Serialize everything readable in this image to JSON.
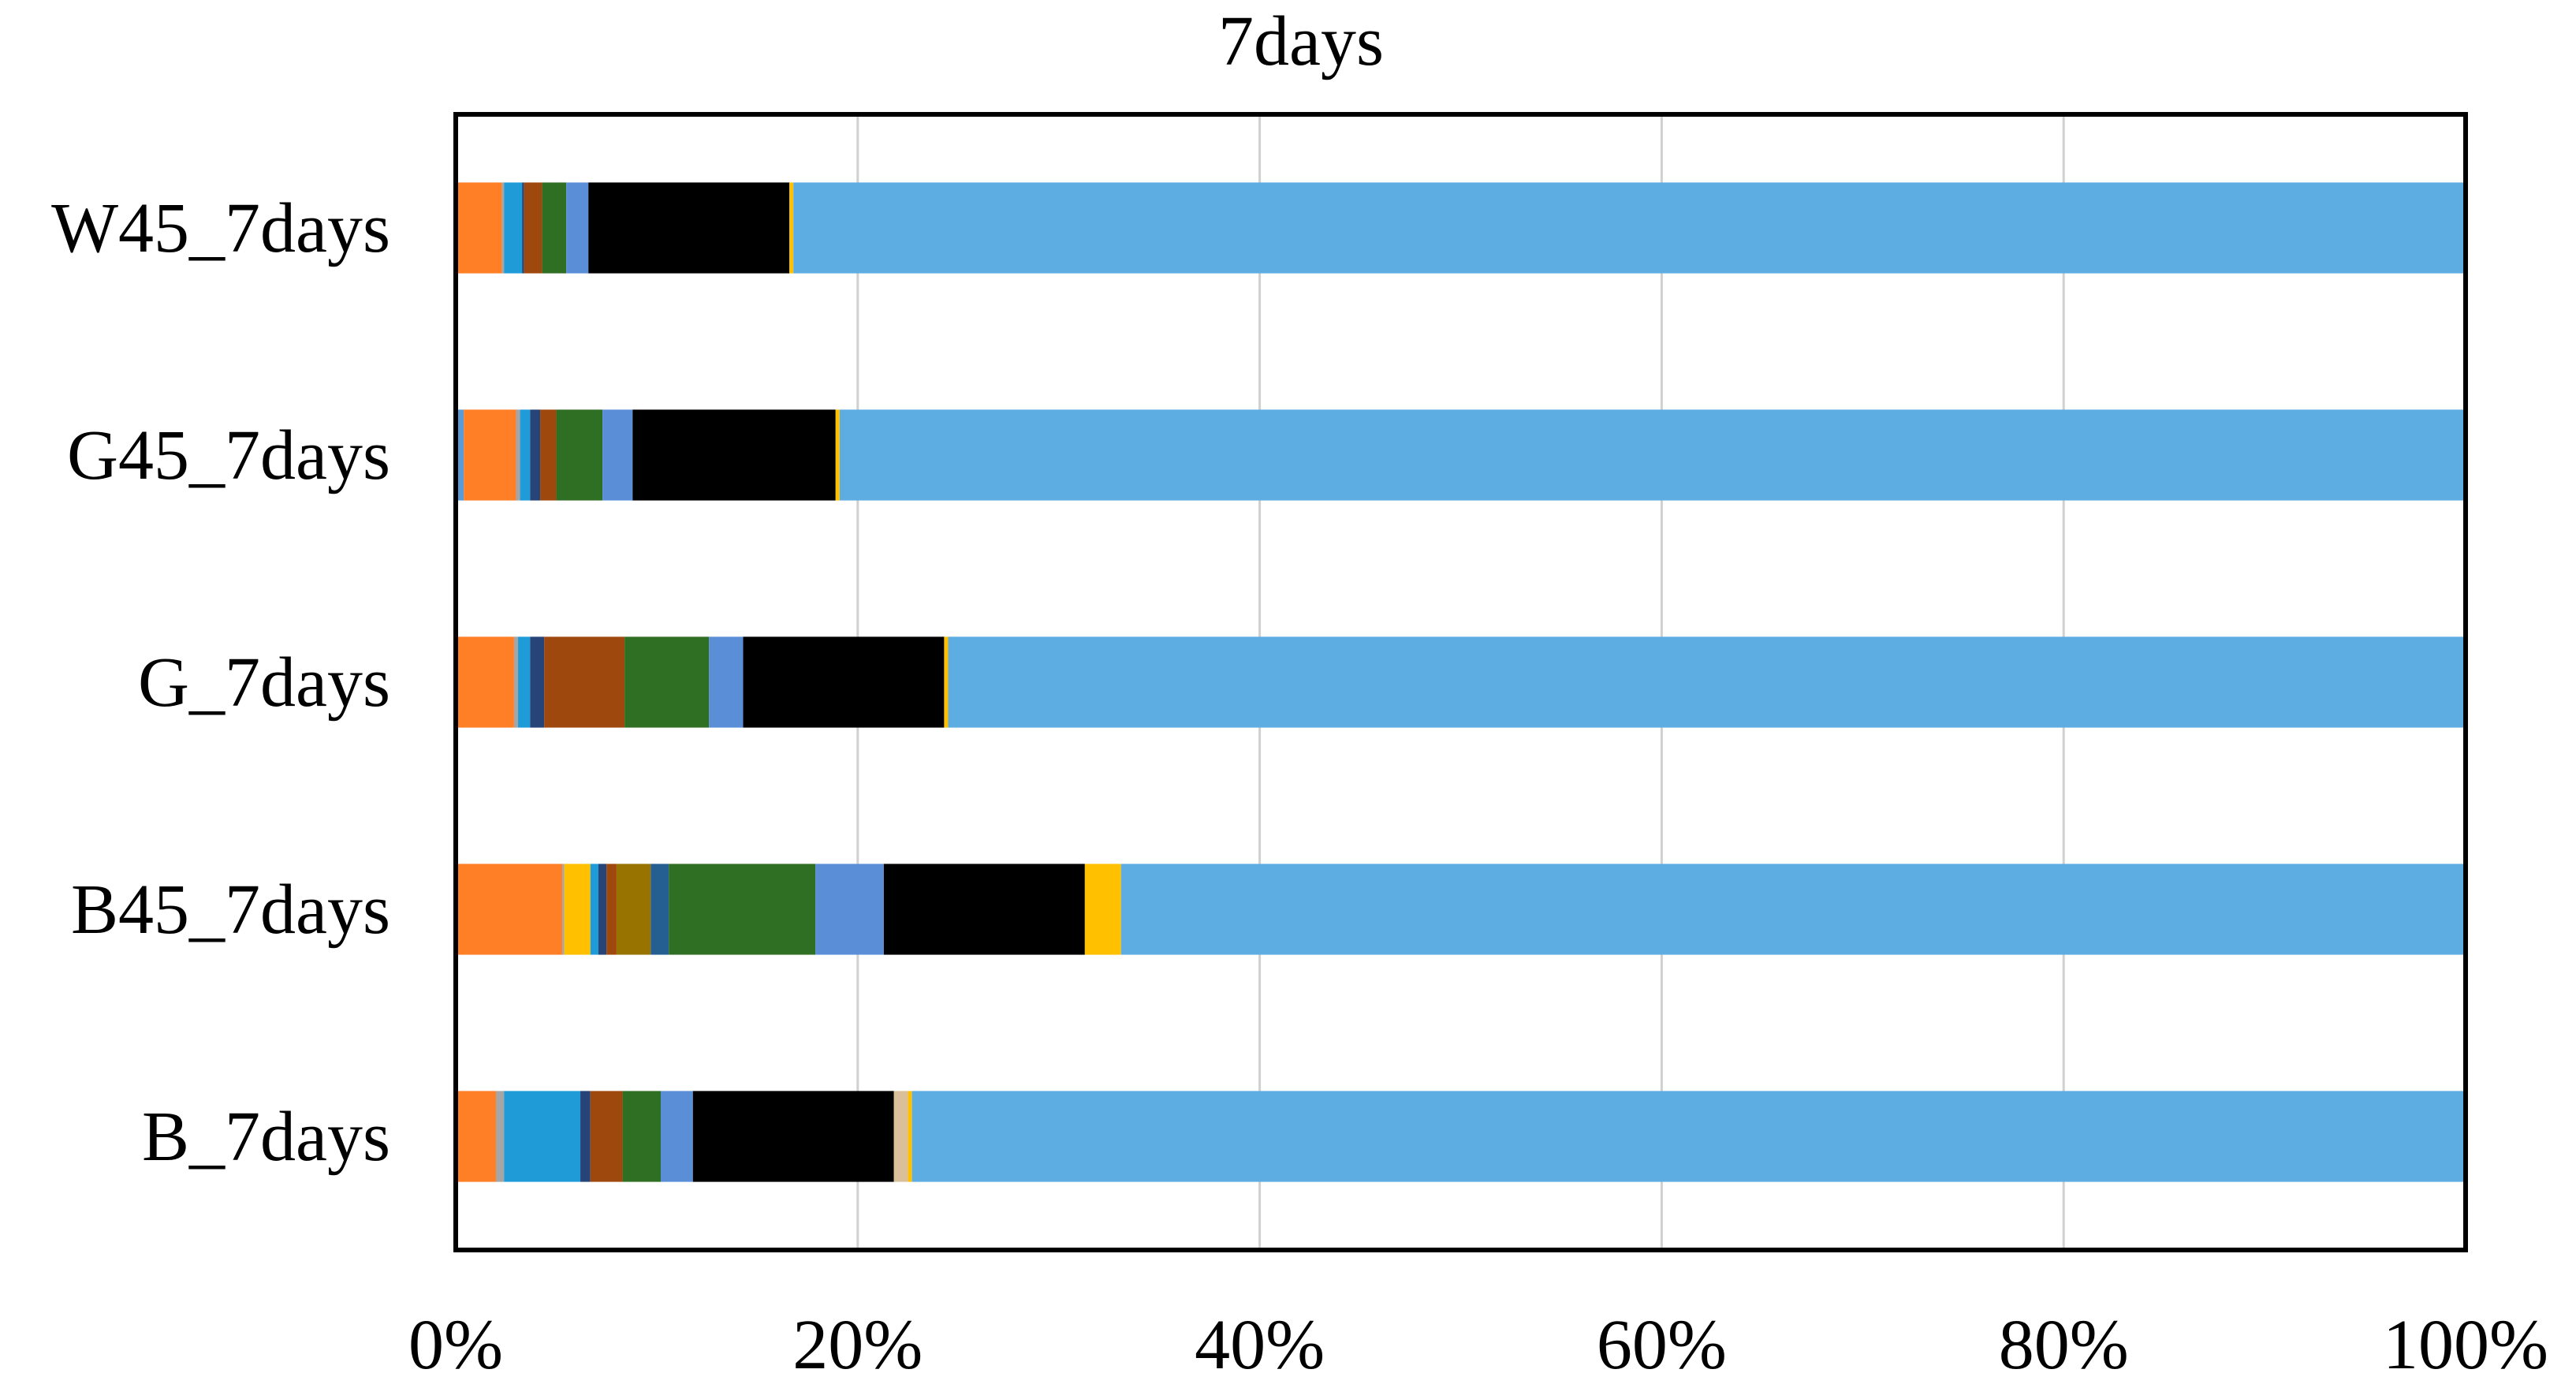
{
  "chart_data": {
    "type": "bar",
    "orientation": "horizontal",
    "stacked": "percent",
    "title": "7days",
    "xlabel": "",
    "ylabel": "",
    "xlim": [
      0,
      100
    ],
    "x_ticks": [
      "0%",
      "20%",
      "40%",
      "60%",
      "80%",
      "100%"
    ],
    "x_tick_values": [
      0,
      20,
      40,
      60,
      80,
      100
    ],
    "grid": "vertical",
    "legend": "none",
    "categories": [
      "W45_7days",
      "G45_7days",
      "G_7days",
      "B45_7days",
      "B_7days"
    ],
    "series": [
      {
        "color": "#5b9bd5",
        "values": [
          0,
          0.4,
          0,
          0,
          0
        ]
      },
      {
        "color": "#ff7f27",
        "values": [
          2.3,
          2.6,
          2.9,
          5.3,
          2.0
        ]
      },
      {
        "color": "#a5a5a5",
        "values": [
          0.1,
          0.2,
          0.2,
          0.1,
          0.4
        ]
      },
      {
        "color": "#ffc000",
        "values": [
          0,
          0,
          0,
          1.3,
          0
        ]
      },
      {
        "color": "#1f9bd7",
        "values": [
          0.9,
          0.5,
          0.6,
          0.4,
          3.8
        ]
      },
      {
        "color": "#264478",
        "values": [
          0.1,
          0.5,
          0.7,
          0.4,
          0.5
        ]
      },
      {
        "color": "#9e480e",
        "values": [
          0.9,
          0.8,
          4.0,
          0.5,
          1.6
        ]
      },
      {
        "color": "#997300",
        "values": [
          0,
          0,
          0,
          1.7,
          0
        ]
      },
      {
        "color": "#255e91",
        "values": [
          0,
          0,
          0,
          0.9,
          0
        ]
      },
      {
        "color": "#2e6f24",
        "values": [
          1.2,
          2.3,
          4.2,
          7.3,
          1.9
        ]
      },
      {
        "color": "#5a8fd8",
        "values": [
          1.1,
          1.5,
          1.7,
          3.4,
          1.6
        ]
      },
      {
        "color": "#000000",
        "values": [
          10.0,
          10.1,
          10.0,
          10.0,
          10.0
        ]
      },
      {
        "color": "#d9c09a",
        "values": [
          0,
          0,
          0,
          0,
          0.7
        ]
      },
      {
        "color": "#ffc000",
        "values": [
          0.2,
          0.2,
          0.2,
          1.8,
          0.2
        ]
      },
      {
        "color": "#5dade2",
        "values": [
          83.2,
          80.9,
          75.5,
          66.9,
          77.3
        ]
      }
    ]
  }
}
